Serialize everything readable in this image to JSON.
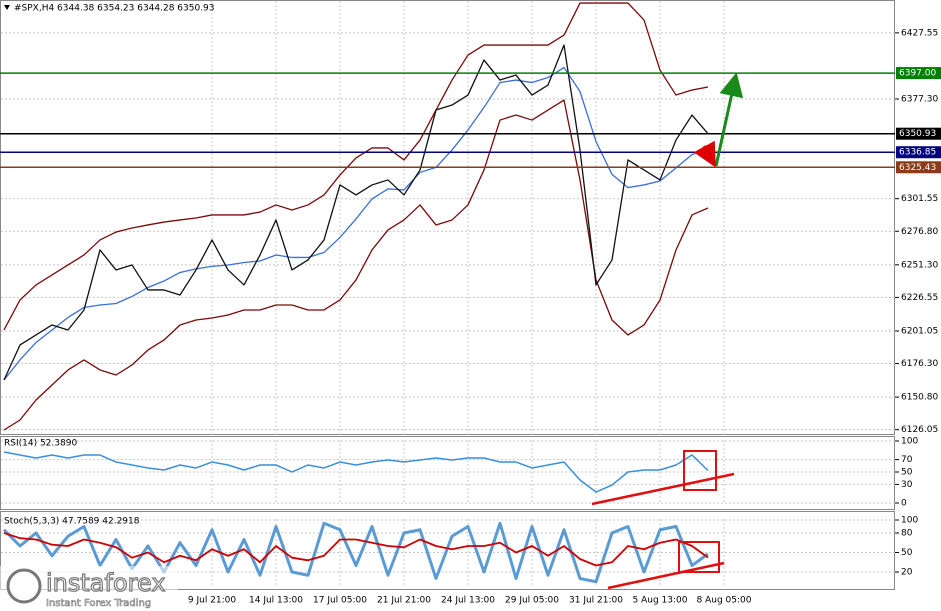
{
  "chart_data": [
    {
      "type": "line",
      "title": "#SPX,H4  6344.38 6354.23 6344.28 6350.93",
      "categories": [
        null,
        null,
        null,
        null,
        null,
        null,
        null,
        null,
        null,
        null,
        null,
        null,
        null,
        "9 Jul 21:00",
        null,
        null,
        null,
        "14 Jul 13:00",
        null,
        null,
        null,
        "17 Jul 05:00",
        null,
        null,
        null,
        "21 Jul 21:00",
        null,
        null,
        null,
        "24 Jul 13:00",
        null,
        null,
        null,
        "29 Jul 05:00",
        null,
        null,
        null,
        "31 Jul 21:00",
        null,
        null,
        null,
        "5 Aug 13:00",
        null,
        null,
        null,
        "8 Aug 05:00"
      ],
      "series": [
        {
          "color": "#7a0a0a",
          "values": [
            6201.8,
            6224.6,
            6236.0,
            6243.6,
            6251.2,
            6258.8,
            6270.2,
            6276.2,
            6279.3,
            6281.6,
            6283.8,
            6285.4,
            6286.9,
            6289.2,
            6289.2,
            6289.2,
            6291.4,
            6296.8,
            6293.0,
            6296.8,
            6304.4,
            6319.6,
            6332.5,
            6340.1,
            6340.1,
            6331.0,
            6346.1,
            6368.9,
            6391.7,
            6410.7,
            6418.3,
            6418.3,
            6418.3,
            6418.3,
            6418.3,
            6425.9,
            6450.2,
            6450.2,
            6450.2,
            6450.2,
            6437.3,
            6399.3,
            6380.3,
            6384.1,
            6386.4,
            null
          ]
        },
        {
          "color": "#7a0a0a",
          "values": [
            6125.8,
            6133.4,
            6148.6,
            6160.0,
            6171.4,
            6179.0,
            6171.4,
            6167.6,
            6175.2,
            6186.6,
            6194.2,
            6205.6,
            6209.4,
            6210.9,
            6213.2,
            6217.0,
            6217.0,
            6220.8,
            6220.8,
            6217.0,
            6217.0,
            6224.6,
            6239.8,
            6262.6,
            6277.8,
            6285.4,
            6296.8,
            6281.6,
            6285.4,
            6296.8,
            6323.4,
            6361.3,
            6365.1,
            6361.3,
            6368.9,
            6376.5,
            6315.8,
            6239.8,
            6209.4,
            6198.0,
            6205.6,
            6224.6,
            6262.6,
            6289.2,
            6294.5,
            null
          ]
        },
        {
          "color": "#3a6fd8",
          "values": [
            6163.8,
            6179.0,
            6192.3,
            6201.8,
            6211.3,
            6218.9,
            6220.8,
            6221.9,
            6227.3,
            6234.1,
            6239.0,
            6245.5,
            6248.2,
            6250.1,
            6251.2,
            6253.1,
            6254.2,
            6258.8,
            6256.9,
            6256.9,
            6260.7,
            6272.1,
            6286.2,
            6301.4,
            6309.0,
            6308.2,
            6321.5,
            6325.3,
            6338.6,
            6353.8,
            6370.9,
            6389.8,
            6391.7,
            6389.8,
            6393.6,
            6401.2,
            6383.0,
            6345.0,
            6320.0,
            6310.0,
            6312.0,
            6315.0,
            6325.0,
            6335.0,
            6340.0,
            null
          ]
        },
        {
          "color": "#111111",
          "values": [
            6163.8,
            6190.4,
            6198.0,
            6205.6,
            6201.8,
            6217.0,
            6262.6,
            6247.4,
            6251.2,
            6232.2,
            6232.2,
            6228.4,
            6247.4,
            6270.2,
            6247.4,
            6236.0,
            6258.8,
            6285.4,
            6247.4,
            6255.0,
            6270.2,
            6312.0,
            6304.4,
            6312.0,
            6315.8,
            6304.4,
            6323.4,
            6368.9,
            6372.7,
            6380.3,
            6406.9,
            6391.7,
            6395.5,
            6380.3,
            6387.9,
            6418.3,
            6338.5,
            6236.0,
            6255.0,
            6331.0,
            6323.4,
            6315.8,
            6346.1,
            6365.1,
            6350.93,
            null
          ]
        }
      ],
      "ylim": [
        6122,
        6451
      ],
      "yticks": [
        6427.55,
        {
          "value": 6377.3,
          "label": "6377.30"
        },
        6301.55,
        {
          "value": 6276.8,
          "label": "6276.80"
        },
        {
          "value": 6251.3,
          "label": "6251.30"
        },
        6226.55,
        6201.05,
        {
          "value": 6176.3,
          "label": "6176.30"
        },
        {
          "value": 6150.8,
          "label": "6150.80"
        },
        6126.05
      ],
      "levels": [
        {
          "value": 6397,
          "label": "6397.00",
          "color": "#008000"
        },
        {
          "value": 6350.93,
          "color": "#000000"
        },
        {
          "value": 6336.85,
          "color": "#000080"
        },
        {
          "value": 6325.43,
          "color": "#8b3a1a"
        }
      ],
      "grid": true
    },
    {
      "type": "line",
      "title": "RSI(14) 52.3890",
      "series": [
        {
          "color": "#3a8fdc",
          "values": [
            82.3,
            77.4,
            72.6,
            77.4,
            72.6,
            77.4,
            77.4,
            66.1,
            61.3,
            56.5,
            53.2,
            61.3,
            56.5,
            66.1,
            61.3,
            53.2,
            61.3,
            61.3,
            50.0,
            61.3,
            56.5,
            66.1,
            61.3,
            66.1,
            69.4,
            66.1,
            69.4,
            72.6,
            69.4,
            72.6,
            72.6,
            66.1,
            66.1,
            56.5,
            61.3,
            66.1,
            37.1,
            17.7,
            29.0,
            50.0,
            53.2,
            53.2,
            61.3,
            77.4,
            52.389,
            null
          ]
        }
      ],
      "ylim": [
        0,
        100
      ],
      "yticks": [
        100,
        70,
        50,
        30,
        0
      ],
      "grid": true
    },
    {
      "type": "line",
      "title": "Stoch(5,3,3) 47.7589 42.2918",
      "series": [
        {
          "color": "#5b9bd5",
          "values": [
            85,
            60,
            80,
            45,
            75,
            90,
            30,
            70,
            25,
            60,
            20,
            65,
            30,
            85,
            20,
            70,
            15,
            90,
            20,
            15,
            95,
            85,
            30,
            90,
            15,
            80,
            85,
            10,
            75,
            90,
            20,
            95,
            10,
            90,
            15,
            85,
            10,
            5,
            80,
            90,
            20,
            85,
            90,
            30,
            47.7589,
            null
          ]
        },
        {
          "color": "#cc0000",
          "values": [
            80,
            72,
            70,
            62,
            60,
            70,
            65,
            58,
            42,
            50,
            35,
            45,
            38,
            55,
            45,
            55,
            35,
            60,
            42,
            38,
            45,
            70,
            70,
            65,
            60,
            58,
            70,
            60,
            55,
            60,
            60,
            65,
            50,
            60,
            45,
            60,
            40,
            30,
            35,
            60,
            55,
            65,
            70,
            60,
            42.2918,
            null
          ]
        }
      ],
      "ylim": [
        0,
        100
      ],
      "yticks": [
        100,
        80,
        50,
        20
      ],
      "grid": true
    }
  ],
  "logo": {
    "name": "instaforex",
    "tagline": "Instant Forex Trading"
  }
}
